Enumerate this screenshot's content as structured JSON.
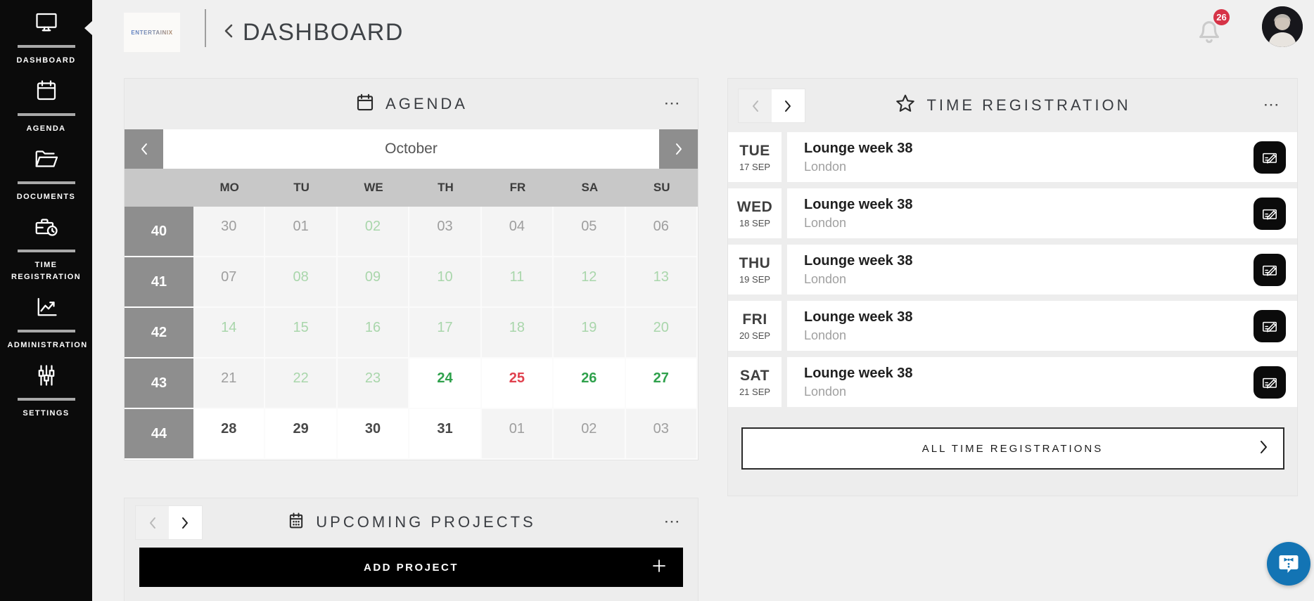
{
  "header": {
    "logo_text": "ENTERTAINIX",
    "title": "DASHBOARD",
    "notification_count": "26"
  },
  "sidebar": {
    "items": [
      {
        "label": "DASHBOARD",
        "icon": "monitor-icon",
        "active": true
      },
      {
        "label": "AGENDA",
        "icon": "calendar-icon",
        "active": false
      },
      {
        "label": "DOCUMENTS",
        "icon": "folder-icon",
        "active": false
      },
      {
        "label": "TIME REGISTRATION",
        "icon": "briefcase-clock-icon",
        "active": false
      },
      {
        "label": "ADMINISTRATION",
        "icon": "chart-icon",
        "active": false
      },
      {
        "label": "SETTINGS",
        "icon": "sliders-icon",
        "active": false
      }
    ]
  },
  "agenda": {
    "title": "AGENDA",
    "menu_icon": "···",
    "month": "October",
    "weekdays": [
      "MO",
      "TU",
      "WE",
      "TH",
      "FR",
      "SA",
      "SU"
    ],
    "weeks": [
      {
        "num": "40",
        "days": [
          {
            "d": "30",
            "s": "muted"
          },
          {
            "d": "01",
            "s": "muted"
          },
          {
            "d": "02",
            "s": "free"
          },
          {
            "d": "03",
            "s": "muted"
          },
          {
            "d": "04",
            "s": "muted"
          },
          {
            "d": "05",
            "s": "muted"
          },
          {
            "d": "06",
            "s": "muted"
          }
        ]
      },
      {
        "num": "41",
        "days": [
          {
            "d": "07",
            "s": "muted"
          },
          {
            "d": "08",
            "s": "free"
          },
          {
            "d": "09",
            "s": "free"
          },
          {
            "d": "10",
            "s": "free"
          },
          {
            "d": "11",
            "s": "free"
          },
          {
            "d": "12",
            "s": "free"
          },
          {
            "d": "13",
            "s": "free"
          }
        ]
      },
      {
        "num": "42",
        "days": [
          {
            "d": "14",
            "s": "free"
          },
          {
            "d": "15",
            "s": "free"
          },
          {
            "d": "16",
            "s": "free"
          },
          {
            "d": "17",
            "s": "free"
          },
          {
            "d": "18",
            "s": "free"
          },
          {
            "d": "19",
            "s": "free"
          },
          {
            "d": "20",
            "s": "free"
          }
        ]
      },
      {
        "num": "43",
        "days": [
          {
            "d": "21",
            "s": "muted"
          },
          {
            "d": "22",
            "s": "free"
          },
          {
            "d": "23",
            "s": "free"
          },
          {
            "d": "24",
            "s": "open"
          },
          {
            "d": "25",
            "s": "busy"
          },
          {
            "d": "26",
            "s": "open"
          },
          {
            "d": "27",
            "s": "open"
          }
        ]
      },
      {
        "num": "44",
        "days": [
          {
            "d": "28",
            "s": "active"
          },
          {
            "d": "29",
            "s": "active"
          },
          {
            "d": "30",
            "s": "active"
          },
          {
            "d": "31",
            "s": "active"
          },
          {
            "d": "01",
            "s": "muted"
          },
          {
            "d": "02",
            "s": "muted"
          },
          {
            "d": "03",
            "s": "muted"
          }
        ]
      }
    ]
  },
  "upcoming_projects": {
    "title": "UPCOMING PROJECTS",
    "menu_icon": "···",
    "add_button": "ADD PROJECT"
  },
  "time_registration": {
    "title": "TIME REGISTRATION",
    "menu_icon": "···",
    "entries": [
      {
        "day": "TUE",
        "date": "17 SEP",
        "title": "Lounge week 38",
        "location": "London"
      },
      {
        "day": "WED",
        "date": "18 SEP",
        "title": "Lounge week 38",
        "location": "London"
      },
      {
        "day": "THU",
        "date": "19 SEP",
        "title": "Lounge week 38",
        "location": "London"
      },
      {
        "day": "FRI",
        "date": "20 SEP",
        "title": "Lounge week 38",
        "location": "London"
      },
      {
        "day": "SAT",
        "date": "21 SEP",
        "title": "Lounge week 38",
        "location": "London"
      }
    ],
    "all_button": "ALL TIME REGISTRATIONS"
  },
  "colors": {
    "sidebar_bg": "#0b0b0b",
    "page_bg": "#f0f0f0",
    "card_bg": "#ededed",
    "grid_gray": "#8e8e8e",
    "weekday_header_bg": "#c8c8c8",
    "day_muted": "#9e9e9e",
    "day_free": "#a9d6ab",
    "day_open": "#2fa14c",
    "day_busy": "#e0414e",
    "badge_red": "#d63347",
    "chat_blue": "#1374b4"
  }
}
